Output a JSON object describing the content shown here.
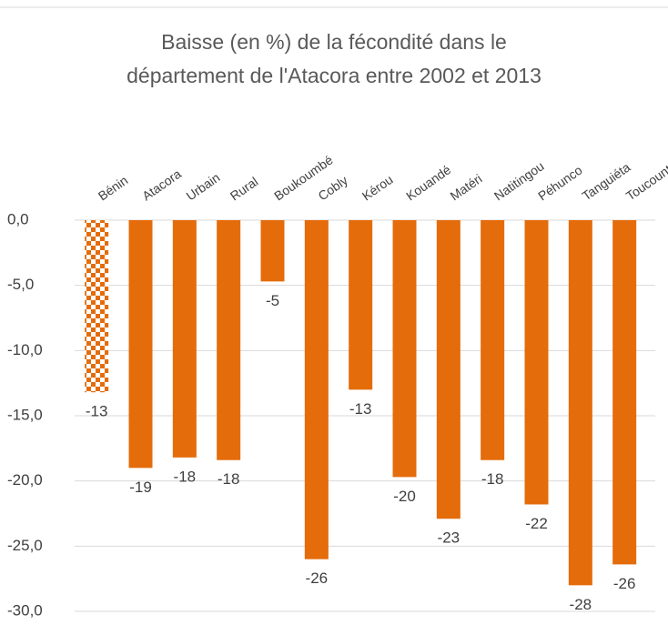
{
  "chart_data": {
    "type": "bar",
    "title": [
      "Baisse (en %) de la fécondité dans le",
      "département de l'Atacora entre 2002 et 2013"
    ],
    "categories": [
      "Bénin",
      "Atacora",
      "Urbain",
      "Rural",
      "Boukoumbé",
      "Cobly",
      "Kérou",
      "Kouandé",
      "Matéri",
      "Natitingou",
      "Péhunco",
      "Tanguiéta",
      "Toucountouna"
    ],
    "values": [
      -13.2,
      -19,
      -18.2,
      -18.4,
      -4.7,
      -26,
      -13,
      -19.7,
      -22.9,
      -18.4,
      -21.8,
      -28,
      -26.4
    ],
    "value_labels": [
      "-13",
      "-19",
      "-18",
      "-18",
      "-5",
      "-26",
      "-13",
      "-20",
      "-23",
      "-18",
      "-22",
      "-28",
      "-26"
    ],
    "color": "#e46c0a",
    "ylim": [
      -30,
      0
    ],
    "yticks": [
      {
        "value": 0,
        "label": "0,0"
      },
      {
        "value": -5,
        "label": "-5,0"
      },
      {
        "value": -10,
        "label": "-10,0"
      },
      {
        "value": -15,
        "label": "-15,0"
      },
      {
        "value": -20,
        "label": "-20,0"
      },
      {
        "value": -25,
        "label": "-25,0"
      },
      {
        "value": -30,
        "label": "-30,0"
      }
    ],
    "grid": true
  }
}
